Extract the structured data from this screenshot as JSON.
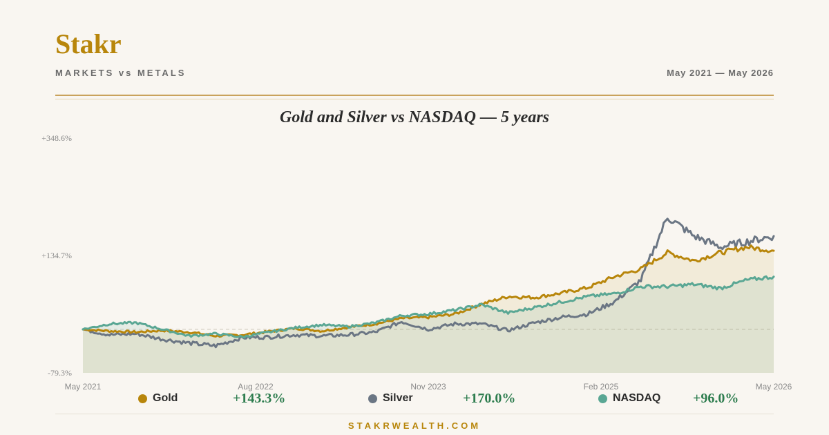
{
  "brand": "Stakr",
  "tagline": "MARKETS vs METALS",
  "date_range": "May 2021 — May 2026",
  "footer": "STAKRWEALTH.COM",
  "colors": {
    "gold": "#b8860b",
    "silver": "#6b7684",
    "nasdaq": "#5aa794",
    "positive": "#2e7d4f"
  },
  "legend": [
    {
      "name": "Gold",
      "value": "+143.3%",
      "color": "#b8860b"
    },
    {
      "name": "Silver",
      "value": "+170.0%",
      "color": "#6b7684"
    },
    {
      "name": "NASDAQ",
      "value": "+96.0%",
      "color": "#5aa794"
    }
  ],
  "chart_data": {
    "type": "line",
    "title": "Gold and Silver vs NASDAQ — 5 years",
    "xlabel": "",
    "ylabel": "",
    "x_ticks": [
      "May 2021",
      "Aug 2022",
      "Nov 2023",
      "Feb 2025",
      "May 2026"
    ],
    "y_ticks": [
      "+348.6%",
      "+134.7%",
      "-79.3%"
    ],
    "ylim": [
      -79.3,
      348.6
    ],
    "baseline": 0,
    "x": [
      "2021-05",
      "2021-08",
      "2021-11",
      "2022-02",
      "2022-05",
      "2022-08",
      "2022-11",
      "2023-02",
      "2023-05",
      "2023-08",
      "2023-11",
      "2024-02",
      "2024-05",
      "2024-08",
      "2024-11",
      "2025-01",
      "2025-03",
      "2025-05",
      "2025-07",
      "2025-09",
      "2025-11",
      "2025-12",
      "2026-01",
      "2026-02",
      "2026-03",
      "2026-04",
      "2026-05"
    ],
    "series": [
      {
        "name": "Gold",
        "color": "#b8860b",
        "values": [
          0,
          -3,
          -5,
          -2,
          -5,
          -12,
          -10,
          -4,
          2,
          -3,
          4,
          10,
          20,
          22,
          28,
          46,
          60,
          58,
          66,
          76,
          96,
          110,
          140,
          125,
          140,
          150,
          143.3
        ]
      },
      {
        "name": "Silver",
        "color": "#6b7684",
        "values": [
          0,
          -10,
          -8,
          -18,
          -25,
          -30,
          -15,
          -14,
          -10,
          -12,
          -10,
          -5,
          14,
          0,
          10,
          10,
          -2,
          12,
          22,
          28,
          50,
          90,
          205,
          170,
          150,
          160,
          170
        ]
      },
      {
        "name": "NASDAQ",
        "color": "#5aa794",
        "values": [
          0,
          10,
          12,
          0,
          -12,
          -8,
          -14,
          -5,
          3,
          8,
          5,
          12,
          25,
          28,
          35,
          45,
          30,
          40,
          50,
          60,
          65,
          78,
          78,
          82,
          75,
          90,
          96
        ]
      }
    ]
  }
}
